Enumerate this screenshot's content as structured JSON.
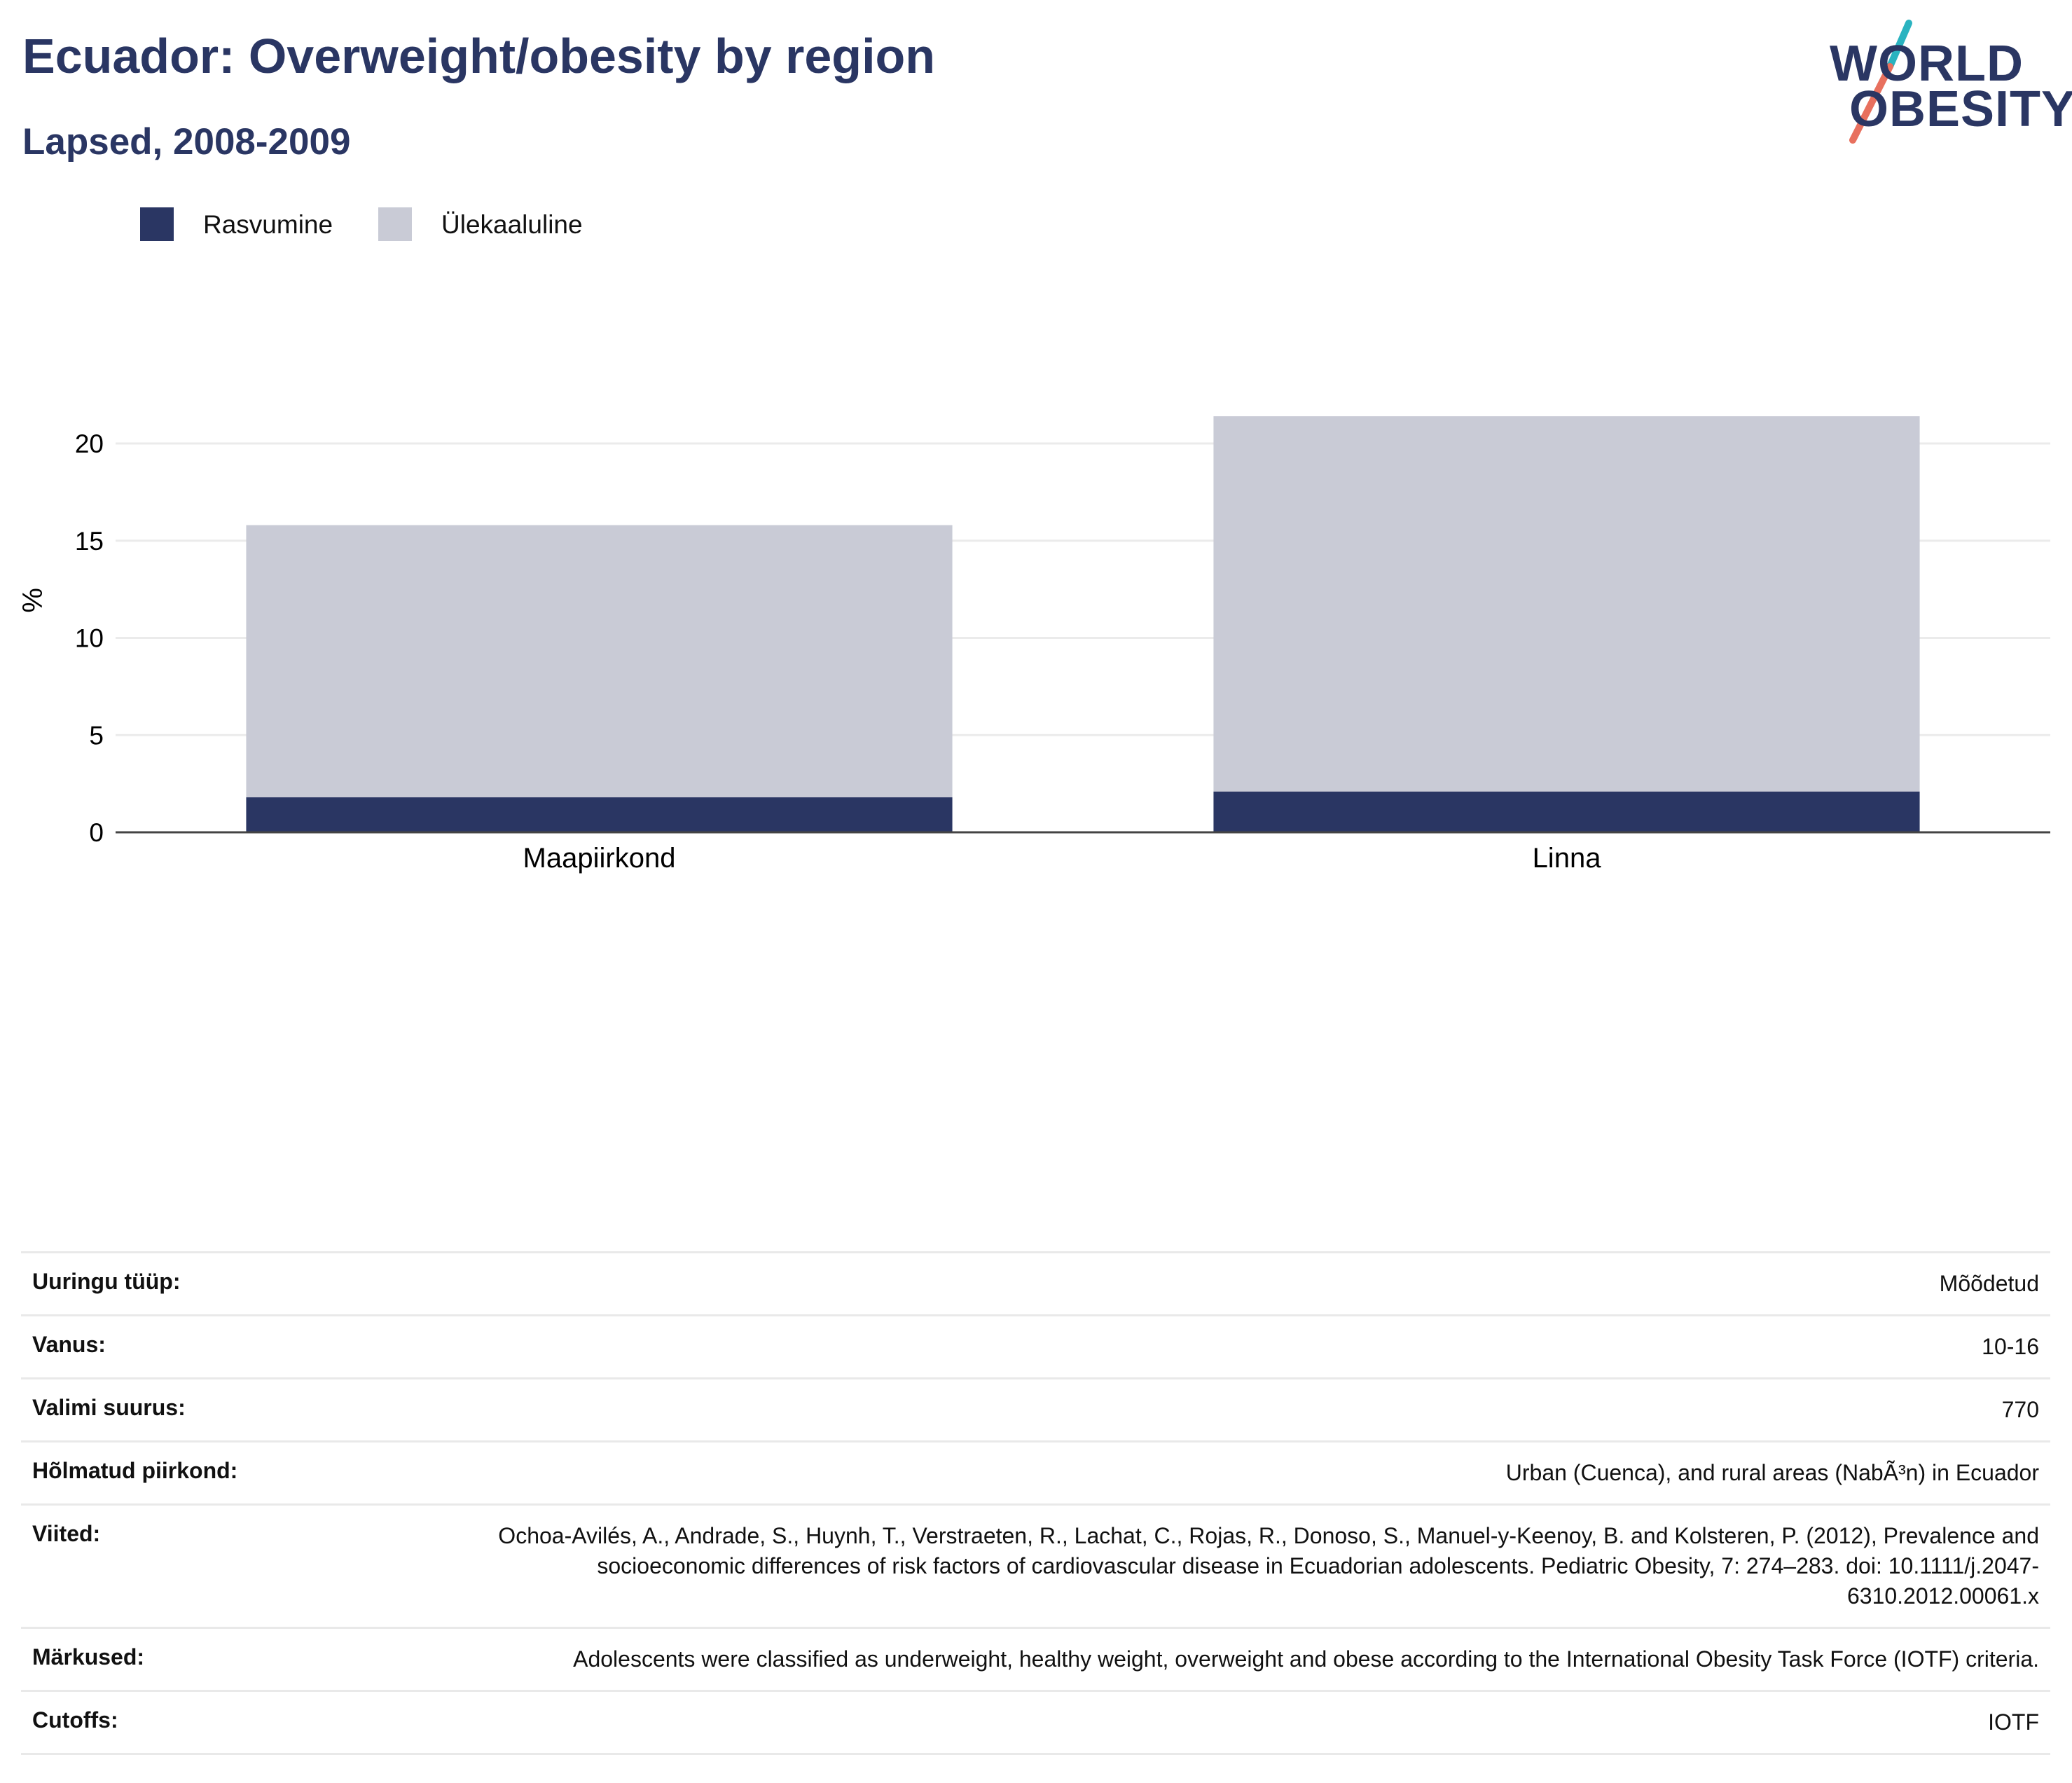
{
  "header": {
    "title": "Ecuador: Overweight/obesity by region",
    "subtitle": "Lapsed, 2008-2009"
  },
  "logo": {
    "line1": "WORLD",
    "line2": "OBESITY"
  },
  "colors": {
    "obesity": "#2a3663",
    "overweight": "#c9cbd6",
    "title": "#2a3663",
    "logo_slash_top": "#2ab3c0",
    "logo_slash_bottom": "#e8705e"
  },
  "legend": [
    {
      "label": "Rasvumine",
      "color": "#2a3663"
    },
    {
      "label": "Ülekaaluline",
      "color": "#c9cbd6"
    }
  ],
  "chart_data": {
    "type": "bar",
    "stacked": true,
    "categories": [
      "Maapiirkond",
      "Linna"
    ],
    "series": [
      {
        "name": "Rasvumine",
        "values": [
          1.8,
          2.1
        ],
        "color": "#2a3663"
      },
      {
        "name": "Ülekaaluline",
        "values": [
          14.0,
          19.3
        ],
        "color": "#c9cbd6"
      }
    ],
    "title": "Ecuador: Overweight/obesity by region",
    "subtitle": "Lapsed, 2008-2009",
    "xlabel": "",
    "ylabel": "%",
    "ylim": [
      0,
      23
    ],
    "yticks": [
      0,
      5,
      10,
      15,
      20
    ],
    "grid": true,
    "legend_position": "top-left"
  },
  "info": [
    {
      "label": "Uuringu tüüp:",
      "value": "Mõõdetud"
    },
    {
      "label": "Vanus:",
      "value": "10-16"
    },
    {
      "label": "Valimi suurus:",
      "value": "770"
    },
    {
      "label": "Hõlmatud piirkond:",
      "value": "Urban (Cuenca), and rural areas (NabÃ³n) in Ecuador"
    },
    {
      "label": "Viited:",
      "value": "Ochoa-Avilés, A., Andrade, S., Huynh, T., Verstraeten, R., Lachat, C., Rojas, R., Donoso, S., Manuel-y-Keenoy, B. and Kolsteren, P. (2012), Prevalence and socioeconomic differences of risk factors of cardiovascular disease in Ecuadorian adolescents. Pediatric Obesity, 7: 274–283. doi: 10.1111/j.2047-6310.2012.00061.x"
    },
    {
      "label": "Märkused:",
      "value": "Adolescents were classified as underweight, healthy weight, overweight and obese according to the International Obesity Task Force (IOTF) criteria."
    },
    {
      "label": "Cutoffs:",
      "value": "IOTF"
    }
  ]
}
